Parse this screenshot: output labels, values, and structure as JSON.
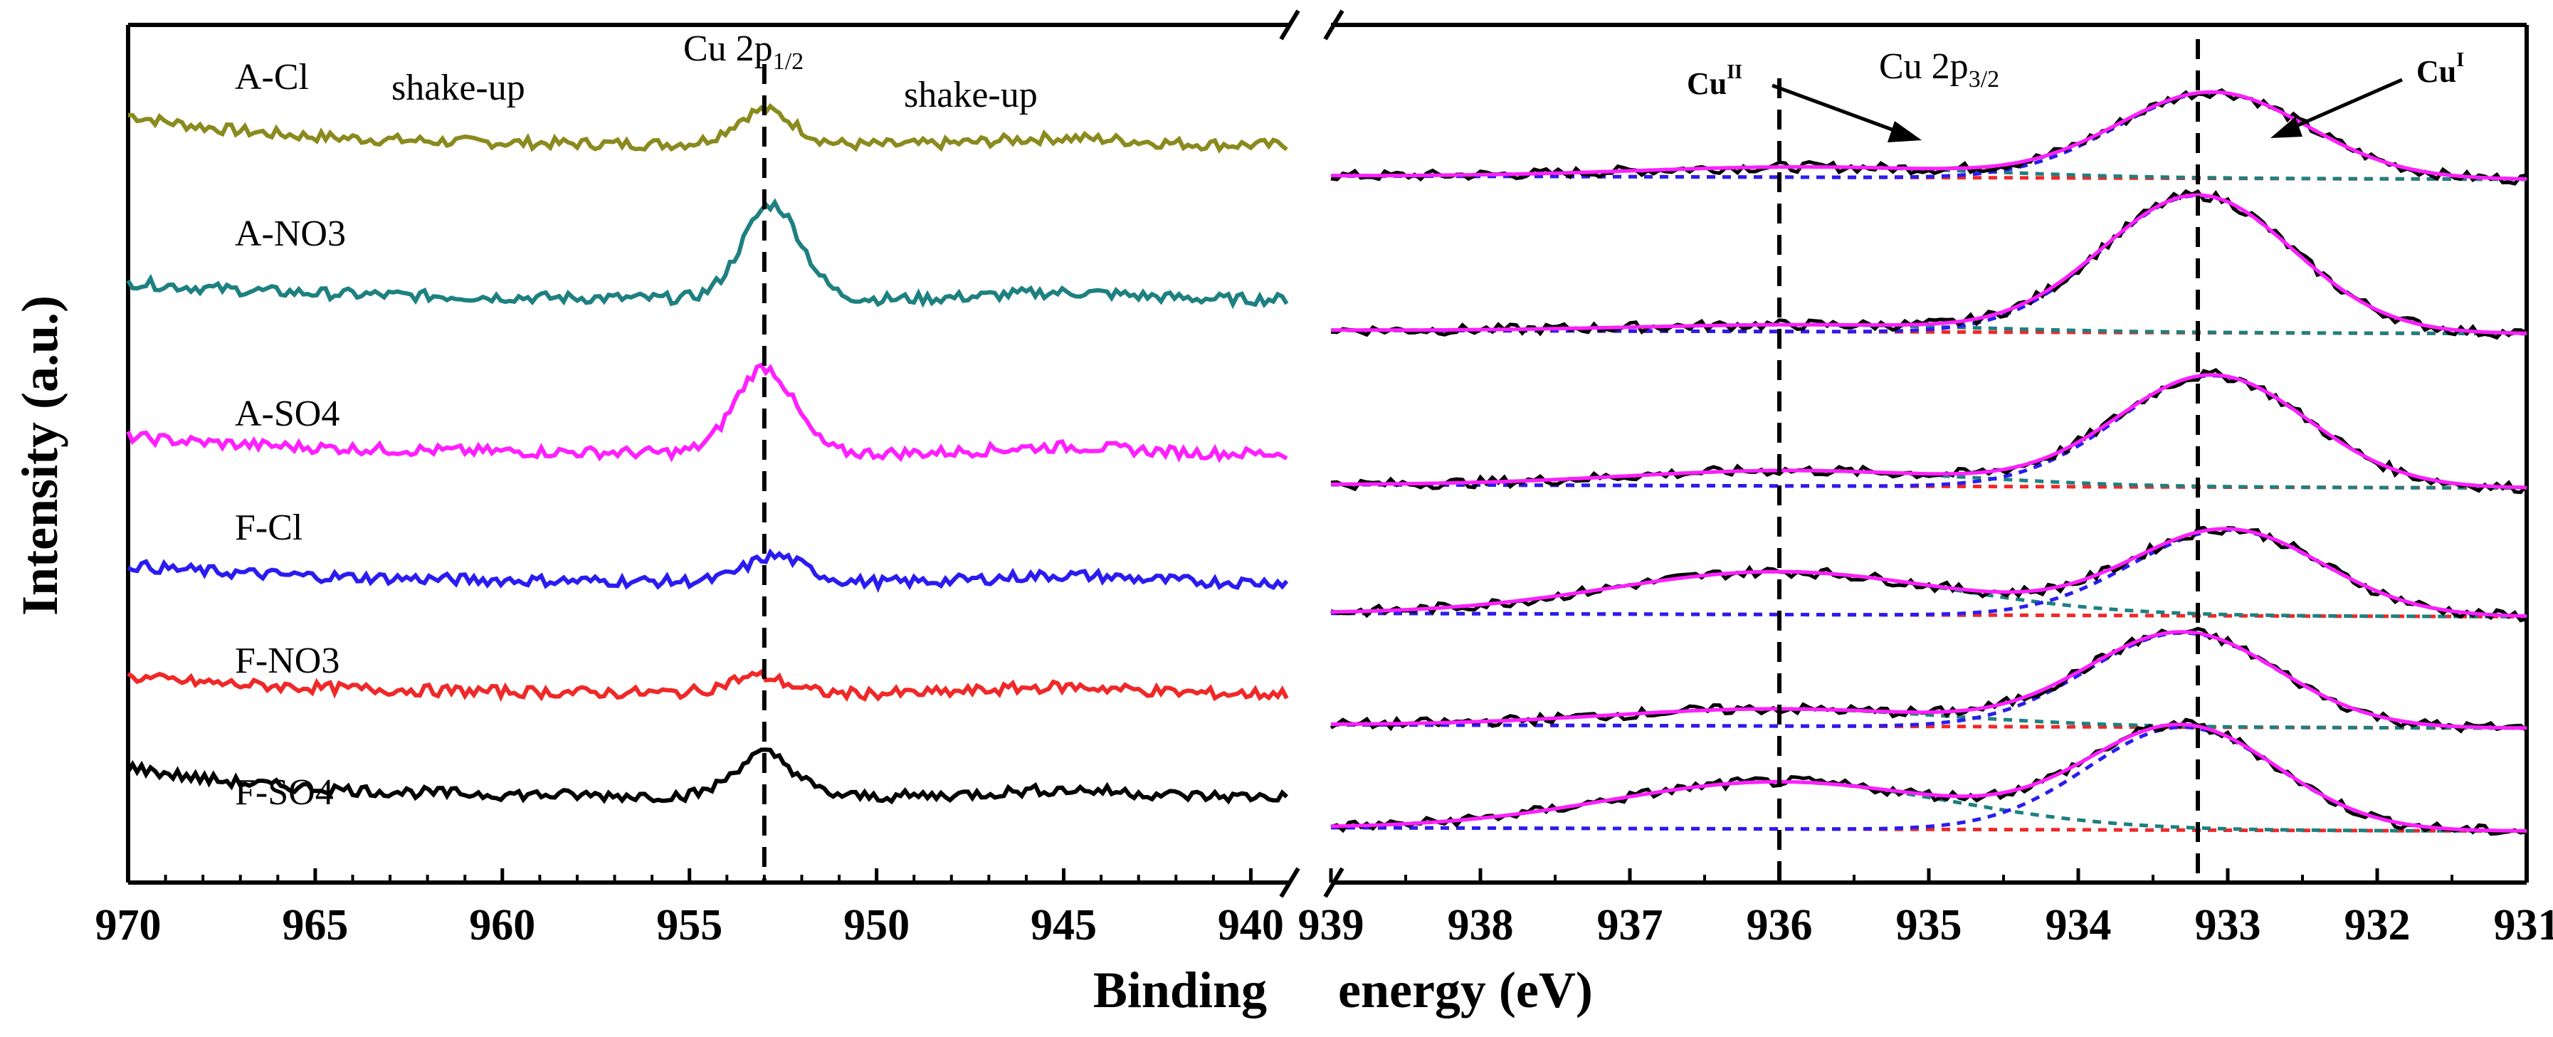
{
  "chart_data": {
    "type": "line",
    "xlabel": "Binding energy (eV)",
    "xlabel_left": "Binding",
    "xlabel_right": "energy (eV)",
    "ylabel": "Intensity (a.u.)",
    "panels": [
      {
        "name": "Cu 2p1/2 region",
        "xlim": [
          970,
          939
        ],
        "xticks": [
          970,
          965,
          960,
          955,
          950,
          945,
          940
        ],
        "reference_line": 953.0
      },
      {
        "name": "Cu 2p3/2 region",
        "xlim": [
          939,
          931
        ],
        "xticks": [
          939,
          938,
          937,
          936,
          935,
          934,
          933,
          932,
          931
        ],
        "reference_lines": [
          936.0,
          933.2
        ]
      }
    ],
    "series": [
      {
        "name": "A-Cl",
        "color": "#8a8a1e",
        "baseline": 0.86,
        "peak_left": 953.0,
        "peak_height_left": 0.04,
        "fit": {
          "cuI": 933.1,
          "cuII": 935.8,
          "amp_I": 0.1,
          "amp_II": 0.012
        }
      },
      {
        "name": "A-NO3",
        "color": "#1e8080",
        "baseline": 0.68,
        "peak_left": 952.8,
        "peak_height_left": 0.11,
        "fit": {
          "cuI": 933.2,
          "cuII": 935.8,
          "amp_I": 0.16,
          "amp_II": 0.008
        }
      },
      {
        "name": "A-SO4",
        "color": "#ff1fff",
        "baseline": 0.5,
        "peak_left": 953.0,
        "peak_height_left": 0.1,
        "fit": {
          "cuI": 933.1,
          "cuII": 935.9,
          "amp_I": 0.13,
          "amp_II": 0.018
        }
      },
      {
        "name": "F-Cl",
        "color": "#2a1cf0",
        "baseline": 0.35,
        "peak_left": 952.7,
        "peak_height_left": 0.03,
        "fit": {
          "cuI": 933.0,
          "cuII": 936.0,
          "amp_I": 0.1,
          "amp_II": 0.05
        }
      },
      {
        "name": "F-NO3",
        "color": "#f02828",
        "baseline": 0.22,
        "peak_left": 953.2,
        "peak_height_left": 0.02,
        "fit": {
          "cuI": 933.3,
          "cuII": 936.0,
          "amp_I": 0.11,
          "amp_II": 0.02
        }
      },
      {
        "name": "F-SO4",
        "color": "#000000",
        "baseline": 0.1,
        "peak_left": 953.0,
        "peak_height_left": 0.05,
        "fit": {
          "cuI": 933.3,
          "cuII": 936.0,
          "amp_I": 0.12,
          "amp_II": 0.055
        }
      }
    ],
    "fit_colors": {
      "envelope": "#ff1fff",
      "cuI_component": "#2a1cf0",
      "cuII_component": "#1e8080",
      "background": "#f02828"
    },
    "annotations": {
      "cu2p12_main": "Cu 2p",
      "cu2p12_sub": "1/2",
      "cu2p32_main": "Cu 2p",
      "cu2p32_sub": "3/2",
      "shakeup_left": "shake-up",
      "shakeup_right": "shake-up",
      "cuII_main": "Cu",
      "cuII_sup": "II",
      "cuI_main": "Cu",
      "cuI_sup": "I"
    }
  }
}
